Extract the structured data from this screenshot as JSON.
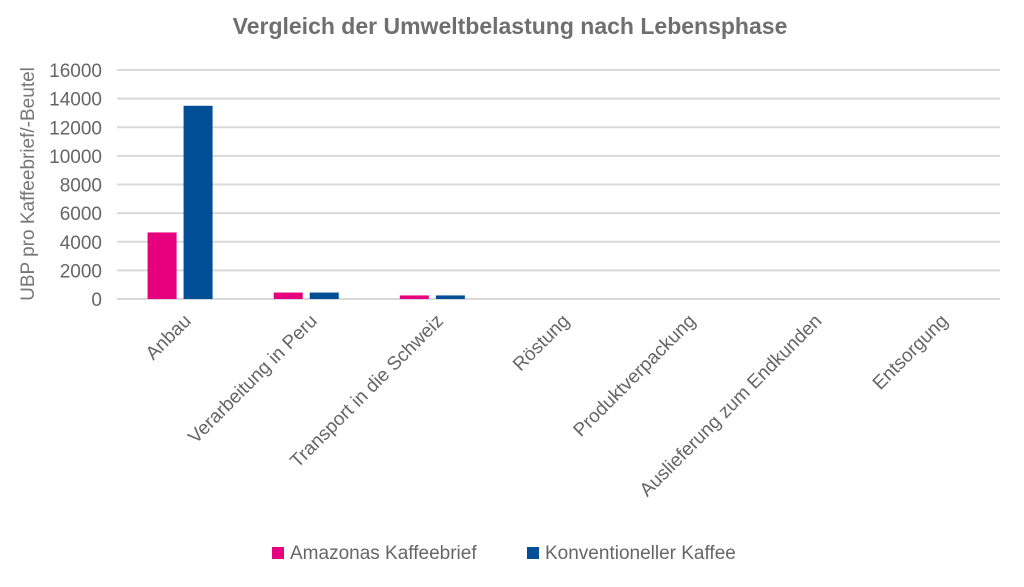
{
  "chart_data": {
    "type": "bar",
    "title": "Vergleich der Umweltbelastung nach Lebensphase",
    "xlabel": "",
    "ylabel": "UBP pro Kaffeebrief/-Beutel",
    "ylim": [
      0,
      16000
    ],
    "yticks": [
      0,
      2000,
      4000,
      6000,
      8000,
      10000,
      12000,
      14000,
      16000
    ],
    "grid": true,
    "legend_position": "bottom",
    "categories": [
      "Anbau",
      "Verarbeitung in Peru",
      "Transport in die Schweiz",
      "Röstung",
      "Produktverpackung",
      "Auslieferung zum Endkunden",
      "Entsorgung"
    ],
    "series": [
      {
        "name": "Amazonas Kaffeebrief",
        "color": "#e6007e",
        "values": [
          4650,
          450,
          250,
          0,
          0,
          0,
          0
        ]
      },
      {
        "name": "Konventioneller Kaffee",
        "color": "#004e96",
        "values": [
          13500,
          450,
          250,
          0,
          0,
          0,
          0
        ]
      }
    ]
  }
}
